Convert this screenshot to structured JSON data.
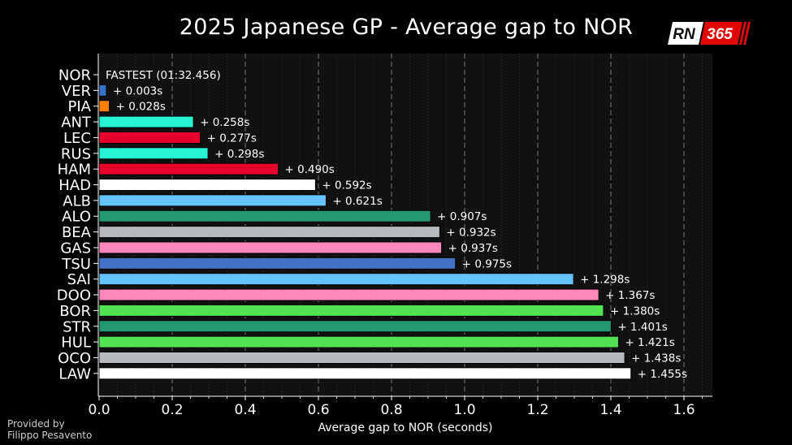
{
  "title": "2025 Japanese GP - Average gap to NOR",
  "logo": {
    "part1": "RN",
    "part2": "365"
  },
  "credit": {
    "line1": "Provided by",
    "line2": "Filippo Pesavento"
  },
  "chart_data": {
    "type": "bar",
    "orientation": "horizontal",
    "title": "2025 Japanese GP - Average gap to NOR",
    "xlabel": "Average gap to NOR (seconds)",
    "ylabel": "",
    "xlim": [
      0,
      1.68
    ],
    "xticks": [
      0.0,
      0.2,
      0.4,
      0.6,
      0.8,
      1.0,
      1.2,
      1.4,
      1.6
    ],
    "xtick_labels": [
      "0.0",
      "0.2",
      "0.4",
      "0.6",
      "0.8",
      "1.0",
      "1.2",
      "1.4",
      "1.6"
    ],
    "grid": "vertical dashed",
    "fastest_label": "FASTEST (01:32.456)",
    "categories": [
      "NOR",
      "VER",
      "PIA",
      "ANT",
      "LEC",
      "RUS",
      "HAM",
      "HAD",
      "ALB",
      "ALO",
      "BEA",
      "GAS",
      "TSU",
      "SAI",
      "DOO",
      "BOR",
      "STR",
      "HUL",
      "OCO",
      "LAW"
    ],
    "values": [
      0.0,
      0.003,
      0.028,
      0.258,
      0.277,
      0.298,
      0.49,
      0.592,
      0.621,
      0.907,
      0.932,
      0.937,
      0.975,
      1.298,
      1.367,
      1.38,
      1.401,
      1.421,
      1.438,
      1.455
    ],
    "value_labels": [
      "",
      "+ 0.003s",
      "+ 0.028s",
      "+ 0.258s",
      "+ 0.277s",
      "+ 0.298s",
      "+ 0.490s",
      "+ 0.592s",
      "+ 0.621s",
      "+ 0.907s",
      "+ 0.932s",
      "+ 0.937s",
      "+ 0.975s",
      "+ 1.298s",
      "+ 1.367s",
      "+ 1.380s",
      "+ 1.401s",
      "+ 1.421s",
      "+ 1.438s",
      "+ 1.455s"
    ],
    "colors": [
      "#ff8000",
      "#3671c6",
      "#ff8000",
      "#27f4d2",
      "#e8002d",
      "#27f4d2",
      "#e8002d",
      "#ffffff",
      "#64c4ff",
      "#229971",
      "#b6babd",
      "#ff87bc",
      "#4472c4",
      "#64c4ff",
      "#ff87bc",
      "#52e252",
      "#229971",
      "#52e252",
      "#b6babd",
      "#ffffff"
    ]
  }
}
